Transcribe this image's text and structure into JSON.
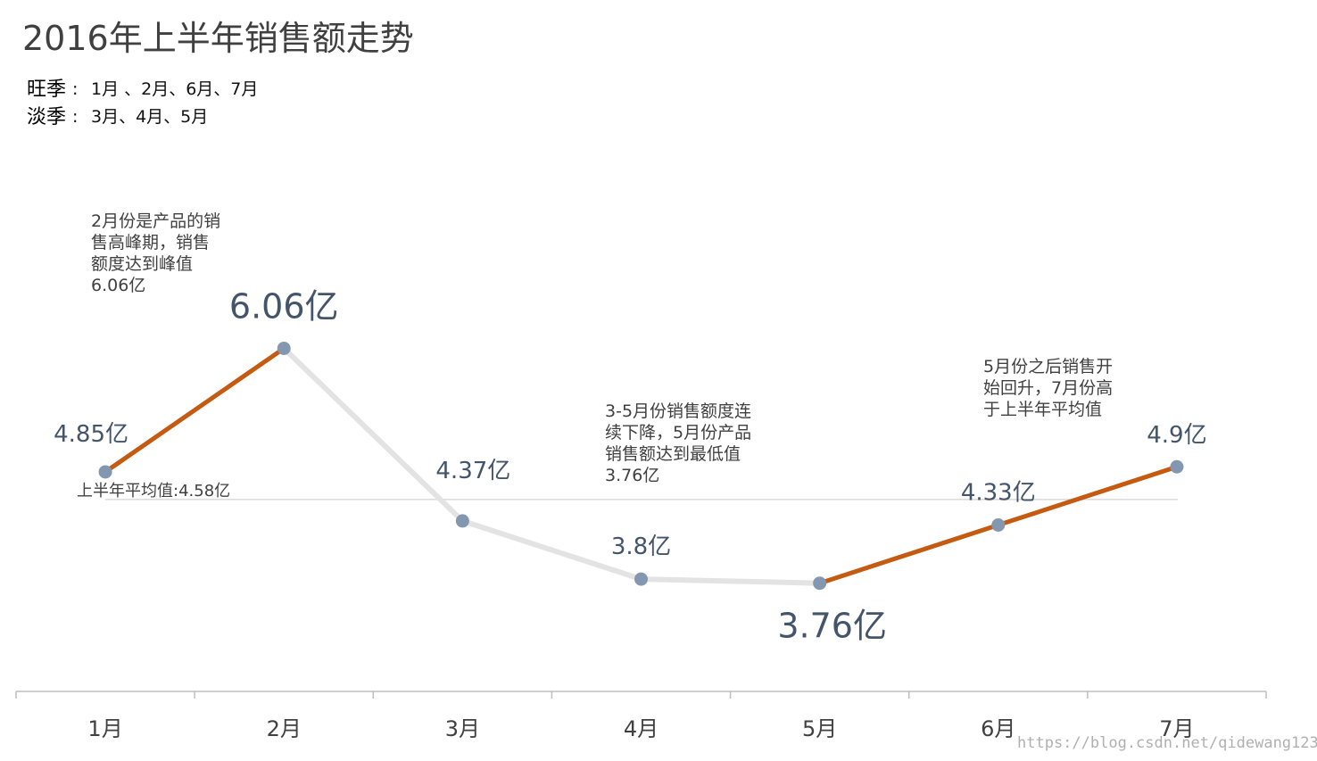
{
  "title": "2016年上半年销售额走势",
  "legend": {
    "peak": {
      "key": "旺季",
      "sep": ":",
      "text": "1月 、2月、6月、7月",
      "color": "#c00000"
    },
    "off": {
      "key": "淡季",
      "sep": ":",
      "text": "3月、4月、5月",
      "color": "#2e75b6"
    }
  },
  "colors": {
    "peak_line": "#c55a11",
    "off_line": "#e3e3e3",
    "marker": "#8497b0",
    "max_label": "#ed7d31",
    "min_label": "#2e75b6",
    "value_label": "#44546a"
  },
  "average": {
    "value": 4.58,
    "label": "上半年平均值:4.58亿"
  },
  "annotations": {
    "peak_note": [
      "2月份是产品的销",
      "售高峰期，销售",
      "额度达到峰值",
      "6.06亿"
    ],
    "decline_note": [
      "3-5月份销售额度连",
      "续下降，5月份产品",
      "销售额达到最低值",
      "3.76亿"
    ],
    "recovery_note": [
      "5月份之后销售开",
      "始回升，7月份高",
      "于上半年平均值"
    ]
  },
  "chart_data": {
    "type": "line",
    "title": "2016年上半年销售额走势",
    "categories": [
      "1月",
      "2月",
      "3月",
      "4月",
      "5月",
      "6月",
      "7月"
    ],
    "values": [
      4.85,
      6.06,
      4.37,
      3.8,
      3.76,
      4.33,
      4.9
    ],
    "value_labels": [
      "4.85亿",
      "6.06亿",
      "4.37亿",
      "3.8亿",
      "3.76亿",
      "4.33亿",
      "4.9亿"
    ],
    "segment_season": [
      "peak",
      "off",
      "off",
      "off",
      "peak",
      "peak"
    ],
    "ylim": [
      2.7,
      7.55
    ],
    "grid": false,
    "legend": "none"
  },
  "watermark": "https://blog.csdn.net/qidewang123"
}
